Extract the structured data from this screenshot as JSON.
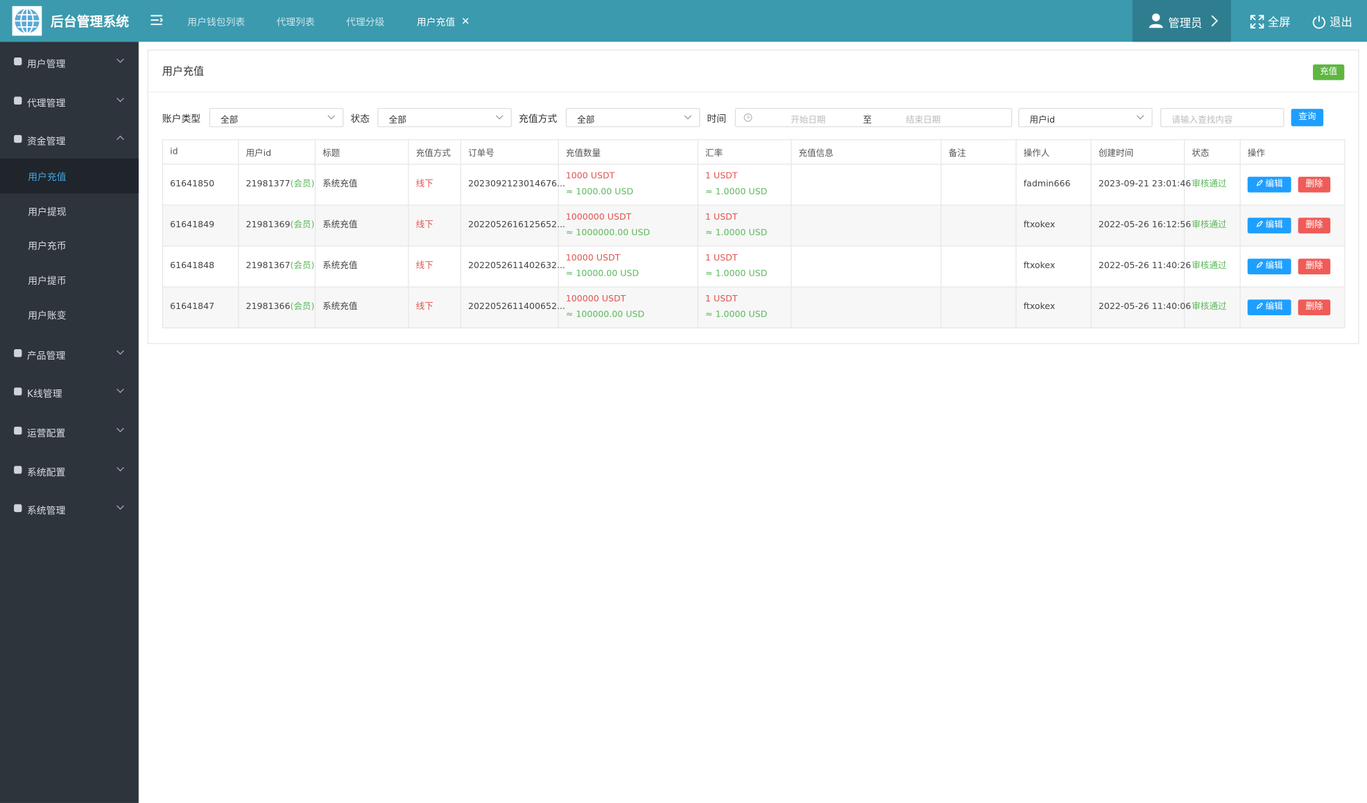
{
  "header": {
    "logo_title": "后台管理系统",
    "tabs": [
      "用户钱包列表",
      "代理列表",
      "代理分级",
      "用户充值"
    ],
    "user": "管理员",
    "fullscreen": "全屏",
    "logout": "退出"
  },
  "sidebar": {
    "menu": [
      {
        "label": "用户管理"
      },
      {
        "label": "代理管理"
      },
      {
        "label": "资金管理",
        "children": [
          "用户充值",
          "用户提现",
          "用户充币",
          "用户提币",
          "用户账变"
        ]
      },
      {
        "label": "产品管理"
      },
      {
        "label": "K线管理"
      },
      {
        "label": "运营配置"
      },
      {
        "label": "系统配置"
      },
      {
        "label": "系统管理"
      }
    ]
  },
  "page": {
    "title": "用户充值",
    "recharge_button": "充值"
  },
  "filters": {
    "account_type_label": "账户类型",
    "account_type": "全部",
    "status_label": "状态",
    "status": "全部",
    "method_label": "充值方式",
    "method": "全部",
    "time_label": "时间",
    "start_placeholder": "开始日期",
    "range_separator": "至",
    "end_placeholder": "结束日期",
    "search_field": "用户id",
    "search_placeholder": "请输入查找内容",
    "search_button": "查询"
  },
  "table": {
    "columns": [
      "id",
      "用户id",
      "标题",
      "充值方式",
      "订单号",
      "充值数量",
      "汇率",
      "充值信息",
      "备注",
      "操作人",
      "创建时间",
      "状态",
      "操作"
    ],
    "member_tag": "(会员)",
    "edit": "编辑",
    "delete": "删除",
    "rows": [
      {
        "id": "61641850",
        "user_id": "21981377",
        "title": "系统充值",
        "method": "线下",
        "order_no": "2023092123014676...",
        "amount": "1000 USDT",
        "amount_usd": "≈ 1000.00 USD",
        "rate": "1 USDT",
        "rate_usd": "≈ 1.0000 USD",
        "operator": "fadmin666",
        "created": "2023-09-21 23:01:46",
        "status": "审核通过"
      },
      {
        "id": "61641849",
        "user_id": "21981369",
        "title": "系统充值",
        "method": "线下",
        "order_no": "2022052616125652...",
        "amount": "1000000 USDT",
        "amount_usd": "≈ 1000000.00 USD",
        "rate": "1 USDT",
        "rate_usd": "≈ 1.0000 USD",
        "operator": "ftxokex",
        "created": "2022-05-26 16:12:56",
        "status": "审核通过"
      },
      {
        "id": "61641848",
        "user_id": "21981367",
        "title": "系统充值",
        "method": "线下",
        "order_no": "2022052611402632...",
        "amount": "10000 USDT",
        "amount_usd": "≈ 10000.00 USD",
        "rate": "1 USDT",
        "rate_usd": "≈ 1.0000 USD",
        "operator": "ftxokex",
        "created": "2022-05-26 11:40:26",
        "status": "审核通过"
      },
      {
        "id": "61641847",
        "user_id": "21981366",
        "title": "系统充值",
        "method": "线下",
        "order_no": "2022052611400652...",
        "amount": "100000 USDT",
        "amount_usd": "≈ 100000.00 USD",
        "rate": "1 USDT",
        "rate_usd": "≈ 1.0000 USD",
        "operator": "ftxokex",
        "created": "2022-05-26 11:40:06",
        "status": "审核通过"
      }
    ]
  }
}
